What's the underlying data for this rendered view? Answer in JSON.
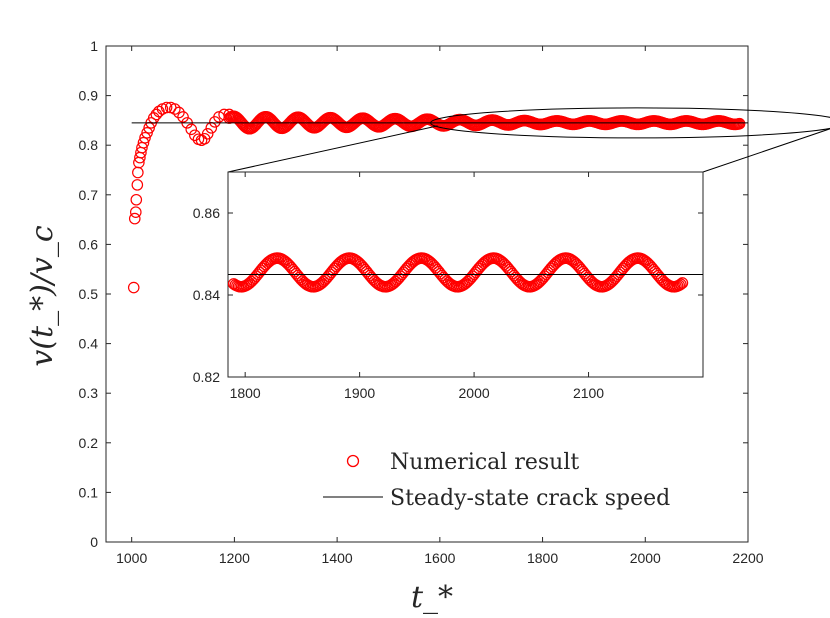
{
  "chart_data": [
    {
      "type": "scatter",
      "name": "main",
      "xlabel": "t_*",
      "ylabel": "v(t_*)/v_c",
      "xlim": [
        950,
        2200
      ],
      "ylim": [
        0,
        1
      ],
      "xticks": [
        "1000",
        "1200",
        "1400",
        "1600",
        "1800",
        "2000",
        "2200"
      ],
      "yticks": [
        "0",
        "0.1",
        "0.2",
        "0.3",
        "0.4",
        "0.5",
        "0.6",
        "0.7",
        "0.8",
        "0.9",
        "1"
      ],
      "steady_state_speed": 0.845,
      "series": [
        {
          "name": "Numerical result",
          "marker": "open-circle",
          "color": "#ff0000",
          "points": [
            [
              1004,
              0.513
            ],
            [
              1006,
              0.652
            ],
            [
              1008,
              0.665
            ],
            [
              1009,
              0.69
            ],
            [
              1011,
              0.72
            ],
            [
              1012,
              0.745
            ],
            [
              1014,
              0.765
            ],
            [
              1016,
              0.775
            ],
            [
              1018,
              0.785
            ],
            [
              1020,
              0.795
            ],
            [
              1023,
              0.805
            ],
            [
              1026,
              0.815
            ],
            [
              1030,
              0.825
            ],
            [
              1034,
              0.835
            ],
            [
              1038,
              0.845
            ],
            [
              1043,
              0.855
            ],
            [
              1048,
              0.862
            ],
            [
              1053,
              0.868
            ],
            [
              1060,
              0.873
            ],
            [
              1068,
              0.876
            ],
            [
              1076,
              0.876
            ],
            [
              1084,
              0.873
            ],
            [
              1092,
              0.866
            ],
            [
              1100,
              0.857
            ],
            [
              1108,
              0.845
            ],
            [
              1116,
              0.832
            ],
            [
              1123,
              0.82
            ],
            [
              1130,
              0.812
            ],
            [
              1136,
              0.81
            ],
            [
              1142,
              0.813
            ],
            [
              1148,
              0.823
            ],
            [
              1155,
              0.835
            ],
            [
              1162,
              0.847
            ],
            [
              1170,
              0.857
            ],
            [
              1180,
              0.862
            ],
            [
              1190,
              0.862
            ]
          ],
          "oscillation": {
            "x_start": 1190,
            "x_end": 2185,
            "center": 0.8455,
            "amplitude_start": 0.013,
            "amplitude_end": 0.0035,
            "period": 63,
            "phase_ref_x": 1828
          }
        },
        {
          "name": "Steady-state crack speed",
          "marker": "line",
          "color": "#000000",
          "x": [
            1000,
            2200
          ],
          "values": [
            0.845,
            0.845
          ]
        }
      ],
      "legend": {
        "placement": "bottom-right",
        "entries": [
          "Numerical result",
          "Steady-state crack speed"
        ]
      },
      "zoom_region": {
        "x": [
          1790,
          2200
        ],
        "y": [
          0.82,
          0.87
        ]
      }
    },
    {
      "type": "scatter",
      "name": "inset",
      "xlim": [
        1785,
        2200
      ],
      "ylim": [
        0.82,
        0.87
      ],
      "xticks": [
        "1800",
        "1900",
        "2000",
        "2100"
      ],
      "yticks": [
        "0.82",
        "0.84",
        "0.86"
      ],
      "steady_state_speed": 0.845,
      "oscillation": {
        "x_start": 1790,
        "x_end": 2183,
        "center": 0.8455,
        "amplitude": 0.0035,
        "period": 63,
        "peak_x": 1828
      }
    }
  ]
}
